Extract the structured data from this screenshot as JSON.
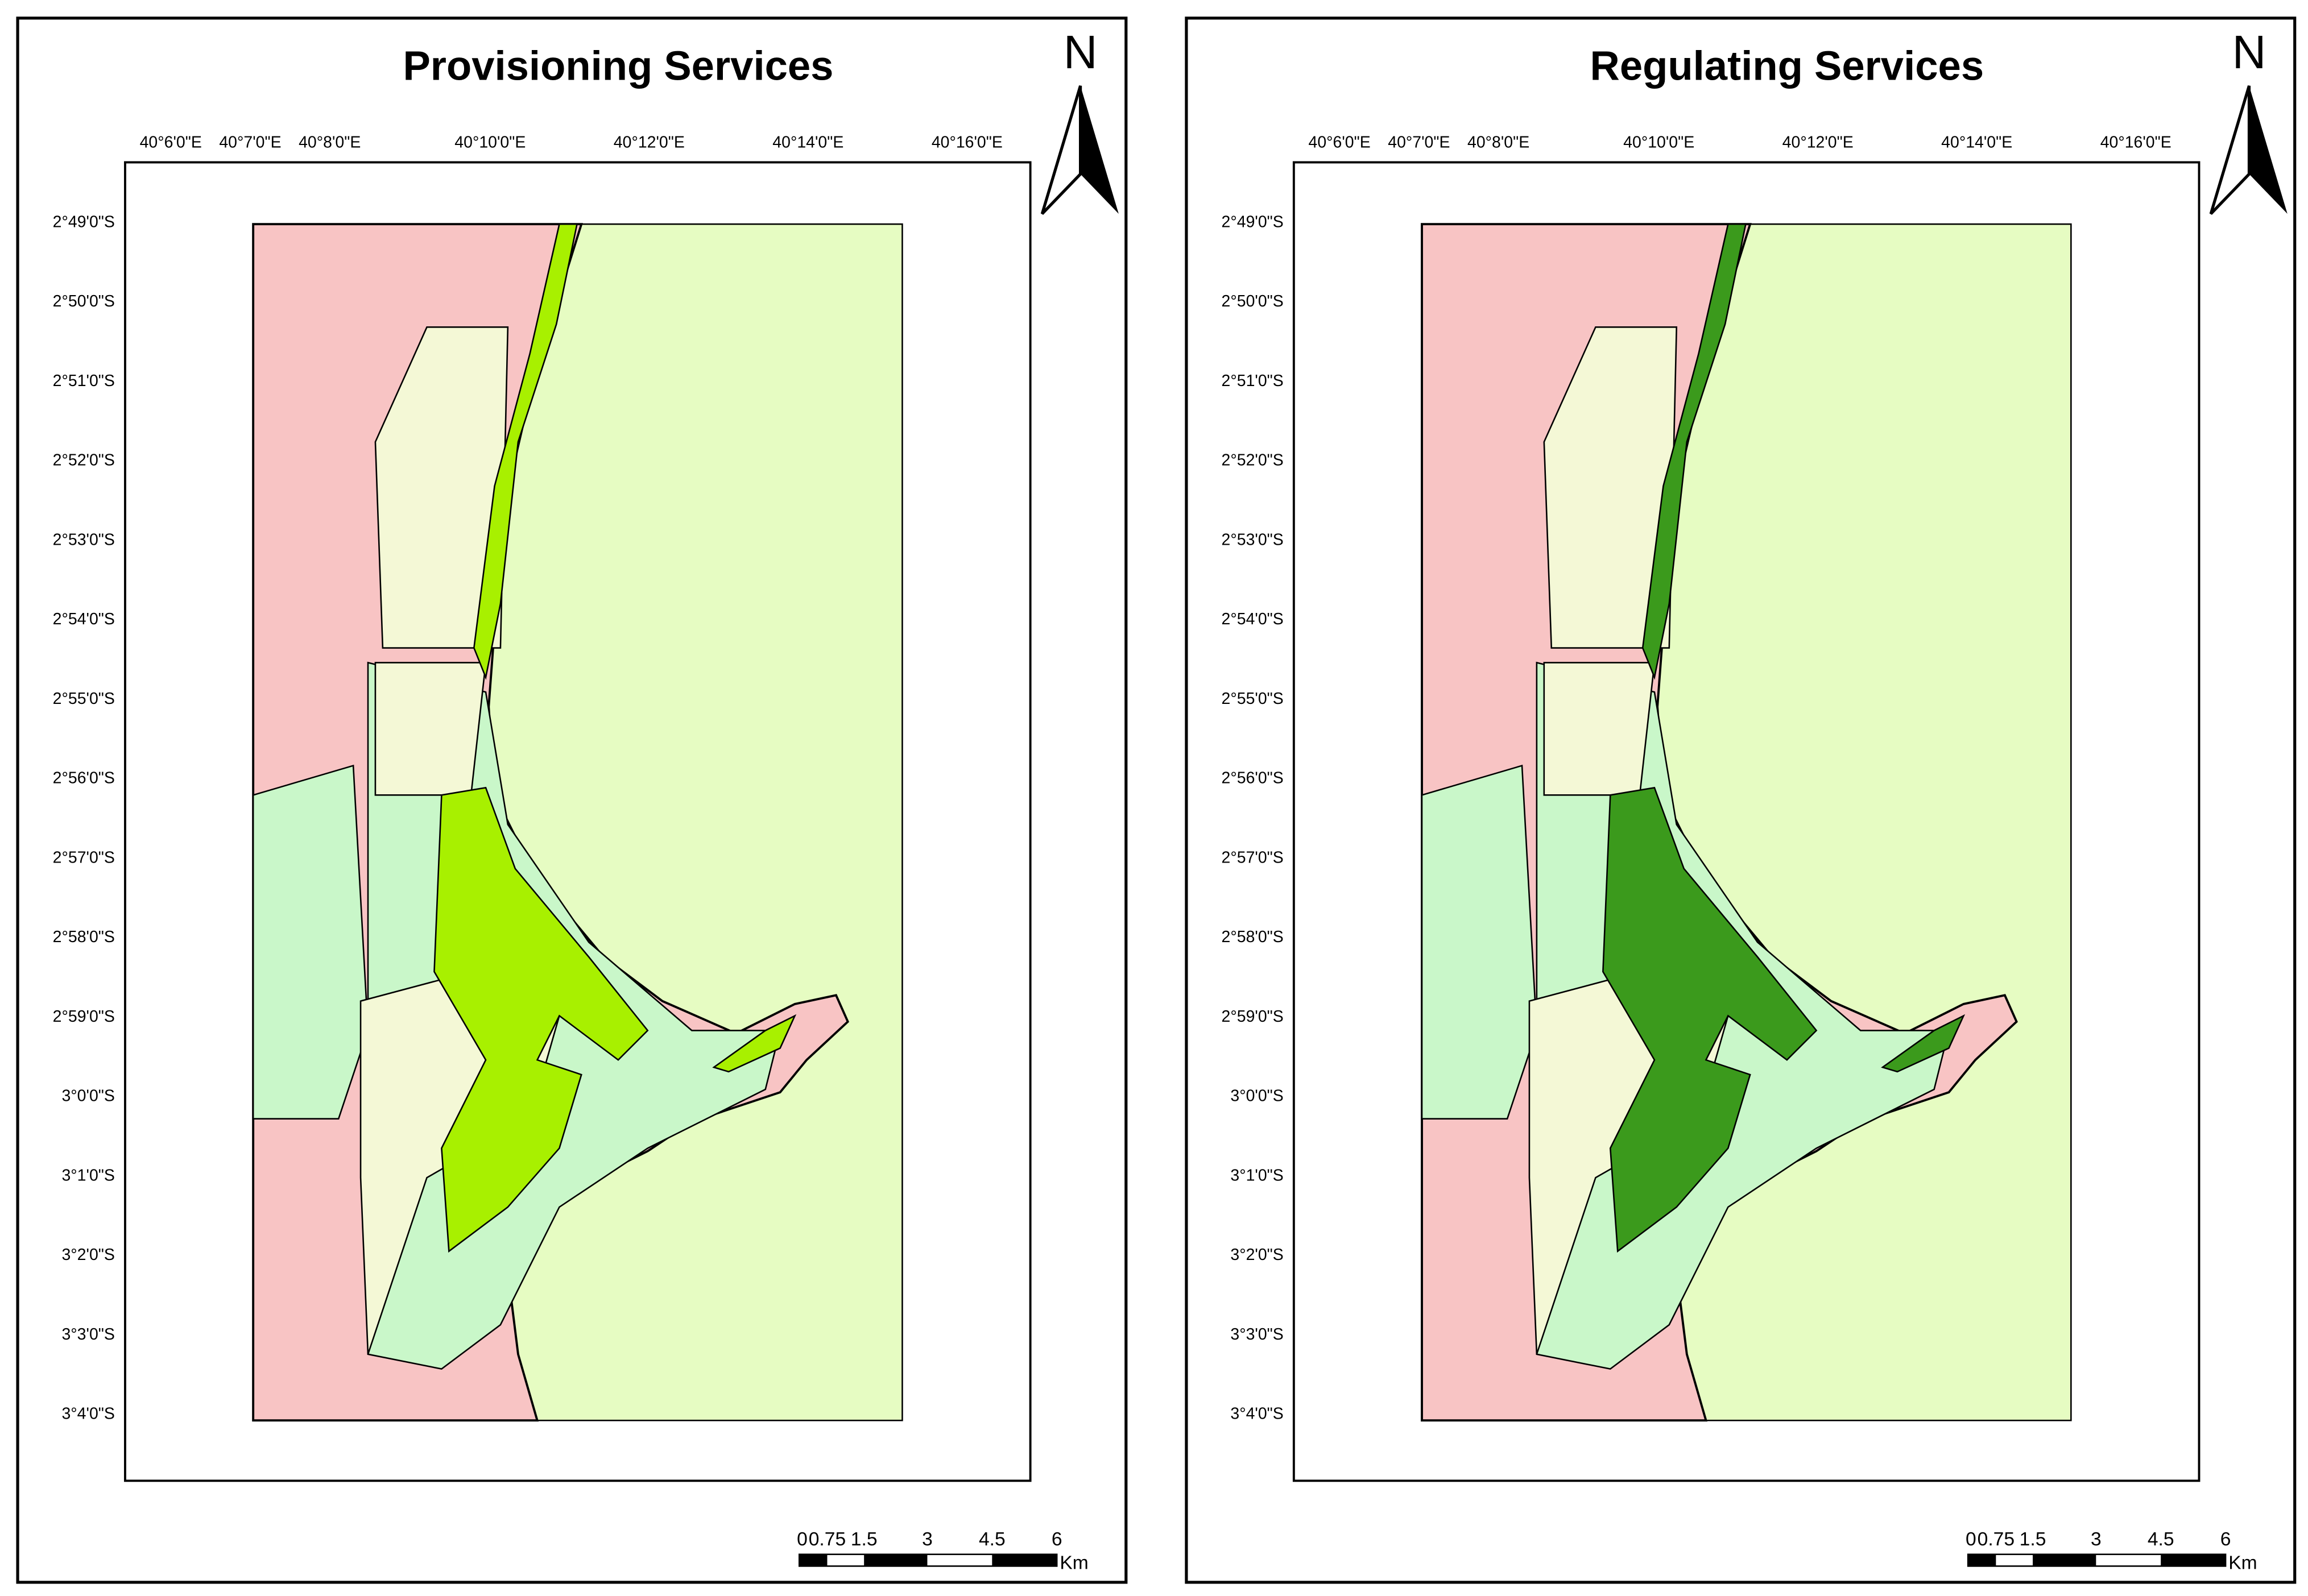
{
  "panels": [
    {
      "title": "Provisioning Services",
      "service_color": "#a8f000"
    },
    {
      "title": "Regulating Services",
      "service_color": "#3b9a1c"
    }
  ],
  "north_label": "N",
  "lon_labels": [
    "40°6'0\"E",
    "40°7'0\"E",
    "40°8'0\"E",
    "40°10'0\"E",
    "40°12'0\"E",
    "40°14'0\"E",
    "40°16'0\"E"
  ],
  "lat_labels": [
    "2°49'0\"S",
    "2°50'0\"S",
    "2°51'0\"S",
    "2°52'0\"S",
    "2°53'0\"S",
    "2°54'0\"S",
    "2°55'0\"S",
    "2°56'0\"S",
    "2°57'0\"S",
    "2°58'0\"S",
    "2°59'0\"S",
    "3°0'0\"S",
    "3°1'0\"S",
    "3°2'0\"S",
    "3°3'0\"S",
    "3°4'0\"S"
  ],
  "scale_bar": {
    "labels": [
      0,
      0.75,
      1.5,
      3,
      4.5,
      6
    ],
    "unit": "Km"
  }
}
